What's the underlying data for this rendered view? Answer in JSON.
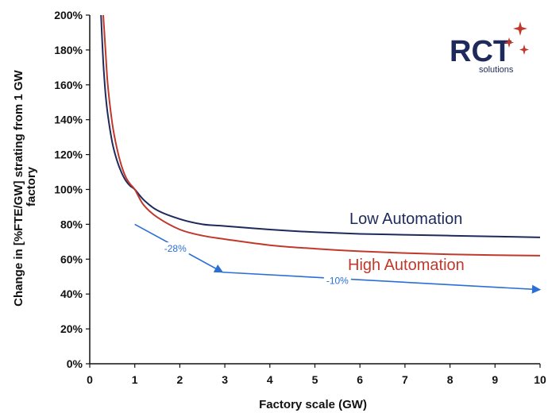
{
  "chart_data": {
    "type": "line",
    "xlabel": "Factory scale (GW)",
    "ylabel_lines": [
      "Change in [%FTE/GW] strating from 1 GW",
      "factory"
    ],
    "xlim": [
      0,
      10
    ],
    "ylim": [
      0,
      200
    ],
    "x_ticks": [
      "0",
      "1",
      "2",
      "3",
      "4",
      "5",
      "6",
      "7",
      "8",
      "9",
      "10"
    ],
    "y_ticks": [
      "0%",
      "20%",
      "40%",
      "60%",
      "80%",
      "100%",
      "120%",
      "140%",
      "160%",
      "180%",
      "200%"
    ],
    "grid": false,
    "series": [
      {
        "name": "Low Automation",
        "color": "#1f2a5c",
        "x": [
          0.25,
          0.3,
          0.35,
          0.4,
          0.5,
          0.6,
          0.7,
          0.8,
          0.9,
          1,
          1.2,
          1.5,
          2,
          2.5,
          3,
          4,
          5,
          6,
          7,
          8,
          9,
          10
        ],
        "y": [
          200,
          173,
          155,
          143,
          127,
          117,
          110,
          105,
          102,
          100,
          94,
          88,
          83,
          80,
          79,
          77,
          75.5,
          74.5,
          74,
          73.5,
          73,
          72.5
        ]
      },
      {
        "name": "High Automation",
        "color": "#c0392b",
        "x": [
          0.3,
          0.35,
          0.4,
          0.5,
          0.6,
          0.7,
          0.8,
          0.9,
          1,
          1.2,
          1.5,
          2,
          2.5,
          3,
          4,
          5,
          6,
          7,
          8,
          9,
          10
        ],
        "y": [
          200,
          180,
          160,
          138,
          124,
          114,
          107,
          103,
          100,
          91,
          84,
          77,
          73.5,
          71.5,
          68,
          66,
          64.5,
          63.5,
          62.8,
          62.3,
          62
        ]
      }
    ],
    "annotations": [
      {
        "text": "-28%",
        "from": [
          1,
          80
        ],
        "to": [
          2.95,
          52.5
        ],
        "label_at": [
          1.9,
          66
        ]
      },
      {
        "text": "-10%",
        "from": [
          2.95,
          52.5
        ],
        "to": [
          10,
          42.5
        ],
        "label_at": [
          5.5,
          47.5
        ]
      }
    ],
    "annotation_color": "#2a6fd6"
  },
  "logo": {
    "text": "RCT",
    "sub": "solutions",
    "text_color": "#1f2a5c",
    "accent_color": "#c0392b"
  }
}
